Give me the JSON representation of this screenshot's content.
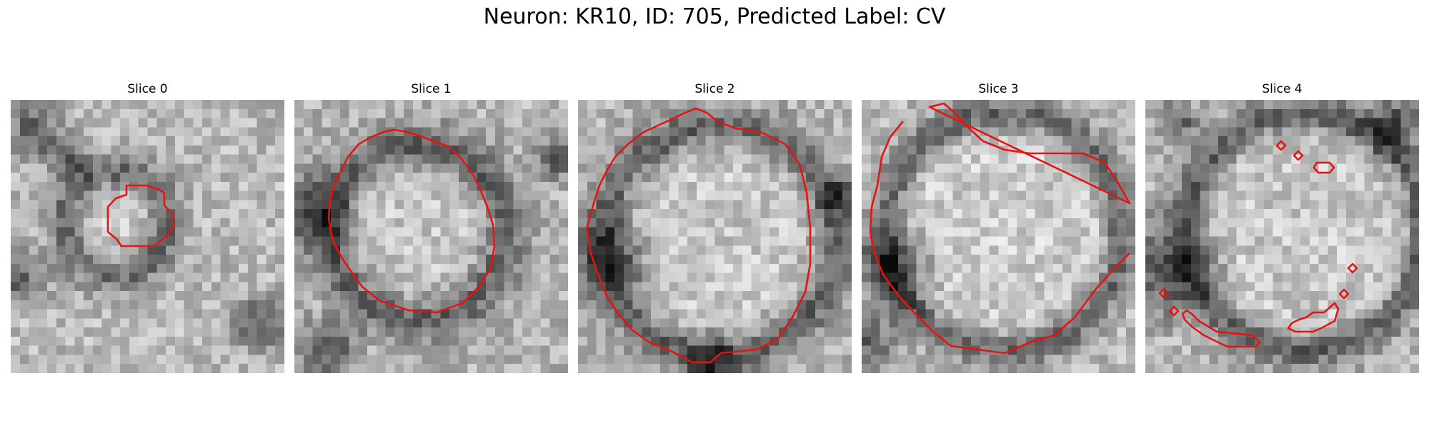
{
  "figure": {
    "title": "Neuron: KR10, ID: 705, Predicted Label: CV"
  },
  "contour_color": "#e41414",
  "colormap": "gray",
  "panels": [
    {
      "title": "Slice 0"
    },
    {
      "title": "Slice 1"
    },
    {
      "title": "Slice 2"
    },
    {
      "title": "Slice 3"
    },
    {
      "title": "Slice 4"
    }
  ]
}
